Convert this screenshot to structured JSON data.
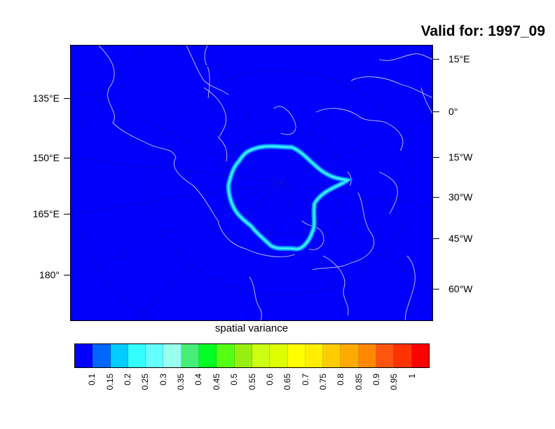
{
  "title": "Valid for: 1997_09",
  "map": {
    "background_color": "#0000fb",
    "left_axis_labels": [
      "135°E",
      "150°E",
      "165°E",
      "180°"
    ],
    "right_axis_labels": [
      "15°E",
      "0°",
      "15°W",
      "30°W",
      "45°W",
      "60°W"
    ],
    "coastline_color": "#c8c8ff",
    "ice_edge_color": "#40e8ff"
  },
  "xlabel": "spatial variance",
  "colorbar": {
    "colors": [
      "#0000fb",
      "#0066ff",
      "#00ccff",
      "#33ffff",
      "#66ffff",
      "#99ffee",
      "#44ee77",
      "#00ff22",
      "#55ff11",
      "#99ee11",
      "#ccff11",
      "#ddff00",
      "#ffff00",
      "#ffee00",
      "#ffcc00",
      "#ffaa00",
      "#ff8800",
      "#ff5511",
      "#ff3300",
      "#ff0000"
    ],
    "labels": [
      "0.1",
      "0.15",
      "0.2",
      "0.25",
      "0.3",
      "0.35",
      "0.4",
      "0.45",
      "0.5",
      "0.55",
      "0.6",
      "0.65",
      "0.7",
      "0.75",
      "0.8",
      "0.85",
      "0.9",
      "0.95",
      "1"
    ]
  }
}
